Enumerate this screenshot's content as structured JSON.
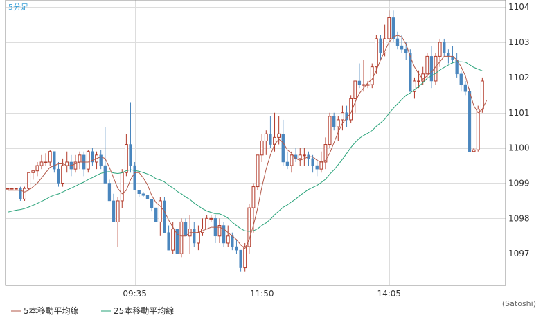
{
  "timeframe_label": "5分足",
  "credit": "(Satoshi)",
  "colors": {
    "up": "#b23a2a",
    "down": "#4a86be",
    "ma5": "#b35a4a",
    "ma25": "#2aa37a",
    "grid": "#dddddd",
    "axis": "#888888",
    "timeframe": "#3aa0d8"
  },
  "legend": [
    {
      "label": "5本移動平均線",
      "color": "#b35a4a"
    },
    {
      "label": "25本移動平均線",
      "color": "#2aa37a"
    }
  ],
  "chart_data": {
    "type": "candlestick",
    "ylim": [
      1096.1,
      1104.2
    ],
    "y_ticks": [
      1097,
      1098,
      1099,
      1100,
      1101,
      1102,
      1103,
      1104
    ],
    "x_tick_labels": [
      {
        "index": 30,
        "label": "09:35"
      },
      {
        "index": 60,
        "label": "11:50"
      },
      {
        "index": 90,
        "label": "14:05"
      }
    ],
    "total_slots": 118,
    "candles": [
      [
        1098.85,
        1098.85,
        1098.85,
        1098.85
      ],
      [
        1098.85,
        1098.85,
        1098.85,
        1098.85
      ],
      [
        1098.85,
        1098.85,
        1098.85,
        1098.85
      ],
      [
        1098.85,
        1098.9,
        1098.5,
        1098.55
      ],
      [
        1098.55,
        1098.9,
        1098.5,
        1098.85
      ],
      [
        1098.85,
        1099.3,
        1098.8,
        1099.3
      ],
      [
        1099.3,
        1099.35,
        1099.1,
        1099.35
      ],
      [
        1099.35,
        1099.6,
        1099.2,
        1099.5
      ],
      [
        1099.5,
        1099.8,
        1099.4,
        1099.6
      ],
      [
        1099.6,
        1099.85,
        1099.5,
        1099.6
      ],
      [
        1099.6,
        1099.95,
        1099.5,
        1099.9
      ],
      [
        1099.9,
        1099.9,
        1099.3,
        1099.4
      ],
      [
        1099.4,
        1099.6,
        1098.9,
        1099.0
      ],
      [
        1099.0,
        1099.7,
        1098.9,
        1099.5
      ],
      [
        1099.5,
        1099.9,
        1099.3,
        1099.6
      ],
      [
        1099.6,
        1099.8,
        1099.2,
        1099.4
      ],
      [
        1099.4,
        1099.8,
        1099.3,
        1099.6
      ],
      [
        1099.6,
        1099.9,
        1099.4,
        1099.8
      ],
      [
        1099.8,
        1099.9,
        1099.2,
        1099.4
      ],
      [
        1099.4,
        1099.95,
        1099.3,
        1099.9
      ],
      [
        1099.9,
        1100.0,
        1099.5,
        1099.6
      ],
      [
        1099.6,
        1099.9,
        1099.4,
        1099.8
      ],
      [
        1099.8,
        1099.95,
        1099.4,
        1099.5
      ],
      [
        1099.5,
        1100.6,
        1099.0,
        1099.0
      ],
      [
        1099.0,
        1099.1,
        1098.5,
        1098.5
      ],
      [
        1098.5,
        1098.7,
        1097.9,
        1097.9
      ],
      [
        1097.9,
        1098.6,
        1097.2,
        1098.5
      ],
      [
        1098.5,
        1099.4,
        1098.3,
        1099.3
      ],
      [
        1099.3,
        1100.4,
        1099.2,
        1100.1
      ],
      [
        1100.1,
        1101.3,
        1099.3,
        1099.5
      ],
      [
        1099.5,
        1099.6,
        1098.8,
        1098.8
      ],
      [
        1098.8,
        1098.8,
        1098.6,
        1098.7
      ],
      [
        1098.7,
        1098.75,
        1098.6,
        1098.65
      ],
      [
        1098.65,
        1098.65,
        1098.55,
        1098.55
      ],
      [
        1098.55,
        1098.55,
        1098.2,
        1098.3
      ],
      [
        1098.3,
        1098.3,
        1097.9,
        1097.9
      ],
      [
        1097.9,
        1098.6,
        1097.5,
        1098.5
      ],
      [
        1098.5,
        1098.6,
        1097.6,
        1097.6
      ],
      [
        1097.6,
        1097.8,
        1097.1,
        1097.1
      ],
      [
        1097.1,
        1097.9,
        1097.0,
        1097.7
      ],
      [
        1097.7,
        1097.7,
        1097.0,
        1097.0
      ],
      [
        1097.0,
        1098.0,
        1096.9,
        1097.9
      ],
      [
        1097.9,
        1098.0,
        1097.5,
        1097.5
      ],
      [
        1097.5,
        1098.1,
        1097.0,
        1097.7
      ],
      [
        1097.7,
        1097.9,
        1097.2,
        1097.3
      ],
      [
        1097.3,
        1097.8,
        1097.1,
        1097.6
      ],
      [
        1097.6,
        1098.0,
        1097.5,
        1097.7
      ],
      [
        1097.7,
        1098.1,
        1097.7,
        1098.0
      ],
      [
        1098.0,
        1098.1,
        1097.9,
        1098.0
      ],
      [
        1098.0,
        1098.1,
        1097.3,
        1097.5
      ],
      [
        1097.5,
        1098.0,
        1097.3,
        1097.8
      ],
      [
        1097.8,
        1097.9,
        1097.2,
        1097.3
      ],
      [
        1097.3,
        1097.8,
        1097.2,
        1097.5
      ],
      [
        1097.5,
        1097.6,
        1097.1,
        1097.2
      ],
      [
        1097.2,
        1097.4,
        1097.0,
        1097.1
      ],
      [
        1097.1,
        1097.1,
        1096.5,
        1096.6
      ],
      [
        1096.6,
        1097.3,
        1096.5,
        1097.2
      ],
      [
        1097.2,
        1098.4,
        1097.0,
        1098.3
      ],
      [
        1098.3,
        1099.0,
        1097.6,
        1098.9
      ],
      [
        1098.9,
        1099.8,
        1098.8,
        1099.8
      ],
      [
        1099.8,
        1100.4,
        1099.6,
        1100.2
      ],
      [
        1100.2,
        1100.5,
        1099.8,
        1100.4
      ],
      [
        1100.4,
        1100.9,
        1100.0,
        1100.1
      ],
      [
        1100.1,
        1101.0,
        1099.9,
        1100.3
      ],
      [
        1100.3,
        1100.9,
        1100.1,
        1100.4
      ],
      [
        1100.4,
        1100.8,
        1099.5,
        1099.6
      ],
      [
        1099.6,
        1099.9,
        1099.4,
        1099.5
      ],
      [
        1099.5,
        1099.9,
        1099.3,
        1099.8
      ],
      [
        1099.8,
        1100.0,
        1099.6,
        1099.7
      ],
      [
        1099.7,
        1100.0,
        1099.5,
        1099.8
      ],
      [
        1099.8,
        1100.0,
        1099.5,
        1099.8
      ],
      [
        1099.8,
        1099.9,
        1099.5,
        1099.7
      ],
      [
        1099.7,
        1099.8,
        1099.3,
        1099.5
      ],
      [
        1099.5,
        1099.7,
        1099.2,
        1099.4
      ],
      [
        1099.4,
        1099.9,
        1099.3,
        1099.6
      ],
      [
        1099.6,
        1100.3,
        1099.4,
        1100.1
      ],
      [
        1100.1,
        1101.0,
        1100.0,
        1100.9
      ],
      [
        1100.9,
        1101.0,
        1100.5,
        1100.6
      ],
      [
        1100.6,
        1100.9,
        1100.2,
        1100.8
      ],
      [
        1100.8,
        1101.2,
        1100.5,
        1101.0
      ],
      [
        1101.0,
        1101.2,
        1100.6,
        1100.8
      ],
      [
        1100.8,
        1101.5,
        1100.7,
        1101.4
      ],
      [
        1101.4,
        1101.9,
        1101.0,
        1101.9
      ],
      [
        1101.9,
        1102.4,
        1101.7,
        1101.8
      ],
      [
        1101.8,
        1102.5,
        1101.6,
        1101.8
      ],
      [
        1101.8,
        1101.9,
        1101.7,
        1101.8
      ],
      [
        1101.8,
        1102.4,
        1101.7,
        1102.3
      ],
      [
        1102.3,
        1103.2,
        1102.1,
        1103.1
      ],
      [
        1103.1,
        1103.2,
        1102.5,
        1102.7
      ],
      [
        1102.7,
        1103.5,
        1102.6,
        1103.1
      ],
      [
        1103.1,
        1103.9,
        1103.0,
        1103.7
      ],
      [
        1103.7,
        1103.9,
        1103.0,
        1103.1
      ],
      [
        1103.1,
        1103.3,
        1102.8,
        1102.9
      ],
      [
        1102.9,
        1103.2,
        1102.7,
        1102.8
      ],
      [
        1102.8,
        1103.0,
        1102.5,
        1102.7
      ],
      [
        1102.7,
        1102.8,
        1101.6,
        1101.6
      ],
      [
        1101.6,
        1102.0,
        1101.4,
        1101.9
      ],
      [
        1101.9,
        1102.2,
        1101.7,
        1101.9
      ],
      [
        1101.9,
        1102.3,
        1101.8,
        1102.1
      ],
      [
        1102.1,
        1102.7,
        1102.0,
        1102.6
      ],
      [
        1102.6,
        1102.9,
        1101.7,
        1101.9
      ],
      [
        1101.9,
        1102.7,
        1101.8,
        1102.6
      ],
      [
        1102.6,
        1103.1,
        1102.3,
        1103.0
      ],
      [
        1103.0,
        1103.1,
        1102.6,
        1102.7
      ],
      [
        1102.7,
        1102.8,
        1102.4,
        1102.6
      ],
      [
        1102.6,
        1102.9,
        1102.4,
        1102.5
      ],
      [
        1102.5,
        1102.7,
        1102.0,
        1102.1
      ],
      [
        1102.1,
        1102.2,
        1101.6,
        1101.8
      ],
      [
        1101.8,
        1101.9,
        1101.5,
        1101.6
      ],
      [
        1101.6,
        1101.7,
        1099.9,
        1099.9
      ],
      [
        1099.9,
        1100.0,
        1099.9,
        1099.95
      ],
      [
        1099.95,
        1101.2,
        1099.9,
        1101.1
      ],
      [
        1101.1,
        1102.0,
        1101.0,
        1101.9
      ]
    ],
    "ma5": [
      1098.8,
      1098.8,
      1098.8,
      1098.8,
      1098.75,
      1098.8,
      1098.9,
      1099.0,
      1099.15,
      1099.3,
      1099.45,
      1099.5,
      1099.55,
      1099.55,
      1099.5,
      1099.5,
      1099.55,
      1099.6,
      1099.6,
      1099.6,
      1099.65,
      1099.7,
      1099.75,
      1099.7,
      1099.45,
      1099.15,
      1098.85,
      1098.7,
      1098.8,
      1099.1,
      1099.3,
      1099.3,
      1099.15,
      1098.95,
      1098.65,
      1098.45,
      1098.35,
      1098.2,
      1097.95,
      1097.75,
      1097.55,
      1097.5,
      1097.5,
      1097.6,
      1097.6,
      1097.6,
      1097.65,
      1097.7,
      1097.75,
      1097.75,
      1097.75,
      1097.7,
      1097.6,
      1097.5,
      1097.4,
      1097.25,
      1097.15,
      1097.4,
      1097.8,
      1098.3,
      1098.9,
      1099.4,
      1099.8,
      1100.1,
      1100.25,
      1100.15,
      1099.95,
      1099.85,
      1099.7,
      1099.65,
      1099.7,
      1099.75,
      1099.75,
      1099.65,
      1099.6,
      1099.65,
      1099.85,
      1100.15,
      1100.45,
      1100.7,
      1100.85,
      1101.0,
      1101.3,
      1101.55,
      1101.7,
      1101.85,
      1101.95,
      1102.2,
      1102.5,
      1102.75,
      1103.0,
      1103.15,
      1103.2,
      1103.15,
      1102.95,
      1102.6,
      1102.3,
      1102.1,
      1101.95,
      1102.05,
      1102.15,
      1102.3,
      1102.45,
      1102.6,
      1102.6,
      1102.6,
      1102.5,
      1102.3,
      1102.05,
      1101.6,
      1101.2,
      1101.0,
      1101.1,
      1101.35
    ]
  }
}
